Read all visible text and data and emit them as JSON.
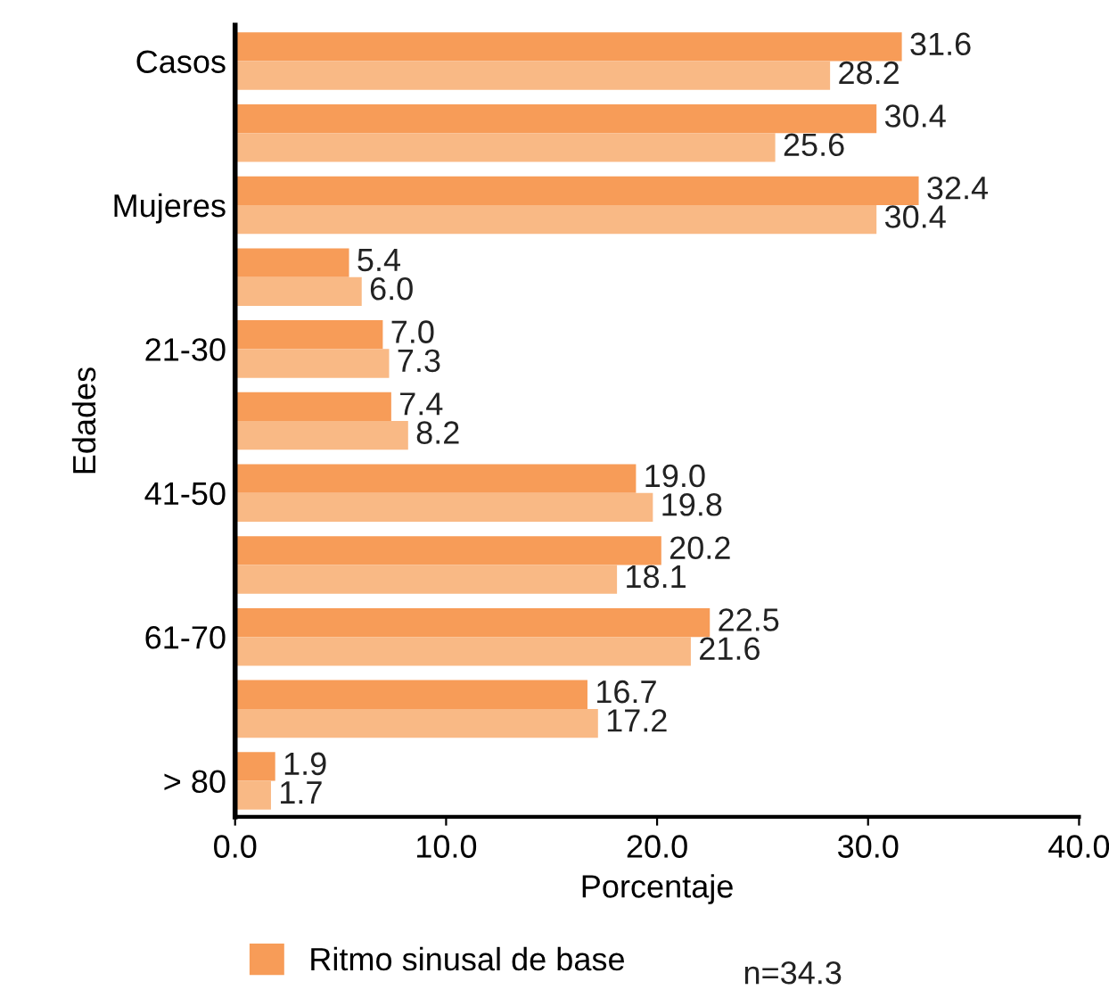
{
  "chart_data": {
    "type": "bar",
    "orientation": "horizontal",
    "xlabel": "Porcentaje",
    "ylabel": "Edades",
    "categories": [
      "Casos",
      null,
      "Mujeres",
      null,
      "21-30",
      null,
      "41-50",
      null,
      "61-70",
      null,
      "> 80"
    ],
    "series": [
      {
        "name": "Ritmo sinusal de base",
        "color": "#f79c58",
        "values": [
          31.6,
          30.4,
          32.4,
          5.4,
          7.0,
          7.4,
          19.0,
          20.2,
          22.5,
          16.7,
          1.9
        ],
        "value_labels": [
          "31.6",
          "30.4",
          "32.4",
          "5.4",
          "7.0",
          "7.4",
          "19.0",
          "20.2",
          "22.5",
          "16.7",
          "1.9"
        ]
      },
      {
        "color": "#f9b985",
        "values": [
          28.2,
          25.6,
          30.4,
          6.0,
          7.3,
          8.2,
          19.8,
          18.1,
          21.6,
          17.2,
          1.7
        ],
        "value_labels": [
          "28.2",
          "25.6",
          "30.4",
          "6.0",
          "7.3",
          "8.2",
          "19.8",
          "18.1",
          "21.6",
          "17.2",
          "1.7"
        ]
      }
    ],
    "xlim": [
      0,
      40
    ],
    "xticks": [
      {
        "value": 0,
        "label": "0.0"
      },
      {
        "value": 10,
        "label": "10.0"
      },
      {
        "value": 20,
        "label": "20.0"
      },
      {
        "value": 30,
        "label": "30.0"
      },
      {
        "value": 40,
        "label": "40.0"
      }
    ],
    "grid": false,
    "legend": "bottom",
    "annotations": [
      "n=34.3"
    ]
  }
}
